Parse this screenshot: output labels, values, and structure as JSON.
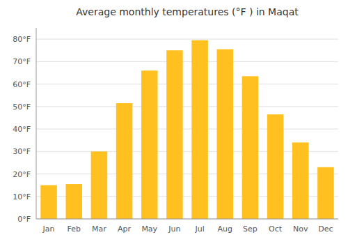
{
  "chart_data": {
    "type": "bar",
    "title": "Average monthly temperatures (°F ) in Maqat",
    "categories": [
      "Jan",
      "Feb",
      "Mar",
      "Apr",
      "May",
      "Jun",
      "Jul",
      "Aug",
      "Sep",
      "Oct",
      "Nov",
      "Dec"
    ],
    "values": [
      15,
      15.5,
      30,
      51.5,
      66,
      75,
      79.5,
      75.5,
      63.5,
      46.5,
      34,
      23
    ],
    "color": "#FFC020",
    "ylim": [
      0,
      85
    ],
    "yticks": [
      {
        "value": 0,
        "label": "0°F"
      },
      {
        "value": 10,
        "label": "10°F"
      },
      {
        "value": 20,
        "label": "20°F"
      },
      {
        "value": 30,
        "label": "30°F"
      },
      {
        "value": 40,
        "label": "40°F"
      },
      {
        "value": 50,
        "label": "50°F"
      },
      {
        "value": 60,
        "label": "60°F"
      },
      {
        "value": 70,
        "label": "70°F"
      },
      {
        "value": 80,
        "label": "80°F"
      }
    ],
    "grid": true
  }
}
